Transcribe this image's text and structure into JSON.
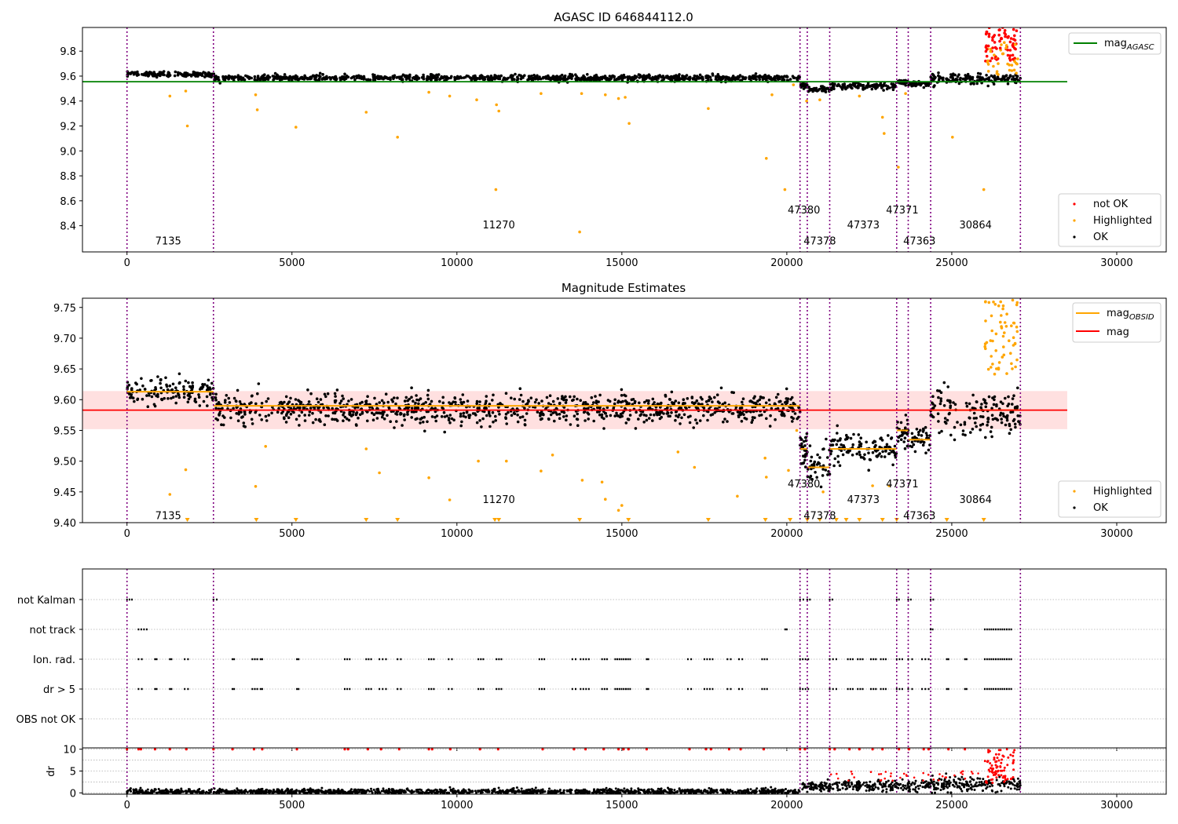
{
  "chart_data": [
    {
      "type": "scatter",
      "title": "AGASC ID 646844112.0",
      "xlabel": "",
      "ylabel": "",
      "xlim": [
        -1350,
        31500
      ],
      "ylim": [
        8.19,
        9.99
      ],
      "xticks": [
        0,
        5000,
        10000,
        15000,
        20000,
        25000,
        30000
      ],
      "yticks": [
        8.4,
        8.6,
        8.8,
        9.0,
        9.2,
        9.4,
        9.6,
        9.8
      ],
      "grid": false,
      "legends": [
        {
          "placement": "top-right",
          "entries": [
            {
              "label": "mag",
              "sub": "AGASC",
              "color": "#008000",
              "kind": "line"
            }
          ]
        },
        {
          "placement": "bottom-right",
          "entries": [
            {
              "label": "not OK",
              "color": "#ff0000",
              "kind": "dot"
            },
            {
              "label": "Highlighted",
              "color": "#ffa500",
              "kind": "dot"
            },
            {
              "label": "OK",
              "color": "#000000",
              "kind": "dot"
            }
          ]
        }
      ],
      "mag_agasc": {
        "value": 9.555,
        "x_range": [
          -1350,
          28500
        ],
        "color": "#008000"
      },
      "obs_boundaries": [
        0,
        2620,
        20400,
        20620,
        21300,
        23330,
        23680,
        24360,
        27080
      ],
      "segments": [
        {
          "x": [
            0,
            2620
          ],
          "level": 9.615,
          "sd": 0.01
        },
        {
          "x": [
            2620,
            20400
          ],
          "level": 9.585,
          "sd": 0.012
        },
        {
          "x": [
            20400,
            20620
          ],
          "level": 9.52,
          "sd": 0.012
        },
        {
          "x": [
            20620,
            21300
          ],
          "level": 9.49,
          "sd": 0.012
        },
        {
          "x": [
            21300,
            23330
          ],
          "level": 9.52,
          "sd": 0.013
        },
        {
          "x": [
            23330,
            23680
          ],
          "level": 9.55,
          "sd": 0.01
        },
        {
          "x": [
            23680,
            24360
          ],
          "level": 9.535,
          "sd": 0.01
        },
        {
          "x": [
            24360,
            27080
          ],
          "level": 9.58,
          "sd": 0.02
        }
      ],
      "obsid_labels": [
        {
          "text": "7135",
          "x": 1250,
          "y": 8.28
        },
        {
          "text": "11270",
          "x": 11270,
          "y": 8.41
        },
        {
          "text": "47380",
          "x": 20520,
          "y": 8.53
        },
        {
          "text": "47378",
          "x": 21000,
          "y": 8.28
        },
        {
          "text": "47373",
          "x": 22320,
          "y": 8.41
        },
        {
          "text": "47371",
          "x": 23500,
          "y": 8.53
        },
        {
          "text": "47363",
          "x": 24020,
          "y": 8.28
        },
        {
          "text": "30864",
          "x": 25720,
          "y": 8.41
        }
      ],
      "highlighted_points": [
        [
          1300,
          9.44
        ],
        [
          1780,
          9.48
        ],
        [
          1830,
          9.2
        ],
        [
          3900,
          9.45
        ],
        [
          3950,
          9.33
        ],
        [
          5120,
          9.19
        ],
        [
          7250,
          9.31
        ],
        [
          8200,
          9.11
        ],
        [
          9150,
          9.47
        ],
        [
          9780,
          9.44
        ],
        [
          10600,
          9.41
        ],
        [
          11200,
          9.37
        ],
        [
          11270,
          9.32
        ],
        [
          11180,
          8.69
        ],
        [
          12550,
          9.46
        ],
        [
          13720,
          8.35
        ],
        [
          13780,
          9.46
        ],
        [
          14500,
          9.45
        ],
        [
          14900,
          9.42
        ],
        [
          15100,
          9.43
        ],
        [
          15220,
          9.22
        ],
        [
          17620,
          9.34
        ],
        [
          19380,
          8.94
        ],
        [
          19550,
          9.45
        ],
        [
          19940,
          8.69
        ],
        [
          20200,
          9.53
        ],
        [
          20600,
          9.4
        ],
        [
          21000,
          9.41
        ],
        [
          22200,
          9.44
        ],
        [
          22900,
          9.27
        ],
        [
          22950,
          9.14
        ],
        [
          23380,
          8.87
        ],
        [
          23600,
          9.46
        ],
        [
          25020,
          9.11
        ],
        [
          25970,
          8.69
        ]
      ],
      "not_ok_points": {
        "x_range": [
          26000,
          27000
        ],
        "y_range": [
          9.72,
          9.99
        ],
        "count": 70
      }
    },
    {
      "type": "scatter",
      "title": "Magnitude Estimates",
      "xlabel": "",
      "ylabel": "",
      "xlim": [
        -1350,
        31500
      ],
      "ylim": [
        9.4,
        9.765
      ],
      "xticks": [
        0,
        5000,
        10000,
        15000,
        20000,
        25000,
        30000
      ],
      "yticks": [
        9.4,
        9.45,
        9.5,
        9.55,
        9.6,
        9.65,
        9.7,
        9.75
      ],
      "grid": false,
      "legends": [
        {
          "placement": "top-right",
          "entries": [
            {
              "label": "mag",
              "sub": "OBSID",
              "color": "#ffa500",
              "kind": "line"
            },
            {
              "label": "mag",
              "sub": "",
              "color": "#ff0000",
              "kind": "line"
            }
          ]
        },
        {
          "placement": "bottom-right",
          "entries": [
            {
              "label": "Highlighted",
              "color": "#ffa500",
              "kind": "dot"
            },
            {
              "label": "OK",
              "color": "#000000",
              "kind": "dot"
            }
          ]
        }
      ],
      "mag": {
        "value": 9.583,
        "band": [
          9.552,
          9.614
        ],
        "x_range": [
          -1350,
          28500
        ],
        "color": "#ff0000"
      },
      "mag_obsid": [
        {
          "x": [
            0,
            2620
          ],
          "value": 9.613
        },
        {
          "x": [
            2620,
            20400
          ],
          "value": 9.59
        },
        {
          "x": [
            20400,
            20620
          ],
          "value": 9.52
        },
        {
          "x": [
            20620,
            21300
          ],
          "value": 9.49
        },
        {
          "x": [
            21300,
            23330
          ],
          "value": 9.52
        },
        {
          "x": [
            23330,
            23680
          ],
          "value": 9.55
        },
        {
          "x": [
            23680,
            24360
          ],
          "value": 9.535
        },
        {
          "x": [
            24360,
            27080
          ],
          "value": 9.583
        }
      ],
      "obsid_labels": [
        {
          "text": "7135",
          "x": 1250,
          "y": 9.412
        },
        {
          "text": "11270",
          "x": 11270,
          "y": 9.438
        },
        {
          "text": "47380",
          "x": 20520,
          "y": 9.464
        },
        {
          "text": "47378",
          "x": 21000,
          "y": 9.412
        },
        {
          "text": "47373",
          "x": 22320,
          "y": 9.438
        },
        {
          "text": "47371",
          "x": 23500,
          "y": 9.464
        },
        {
          "text": "47363",
          "x": 24020,
          "y": 9.412
        },
        {
          "text": "30864",
          "x": 25720,
          "y": 9.438
        }
      ],
      "highlighted_points": [
        [
          1300,
          9.446
        ],
        [
          1780,
          9.486
        ],
        [
          3900,
          9.459
        ],
        [
          4200,
          9.524
        ],
        [
          7250,
          9.52
        ],
        [
          7650,
          9.481
        ],
        [
          9150,
          9.473
        ],
        [
          9780,
          9.437
        ],
        [
          10650,
          9.5
        ],
        [
          11500,
          9.5
        ],
        [
          12550,
          9.484
        ],
        [
          12900,
          9.51
        ],
        [
          13800,
          9.469
        ],
        [
          14400,
          9.466
        ],
        [
          14500,
          9.438
        ],
        [
          15000,
          9.428
        ],
        [
          14900,
          9.42
        ],
        [
          16700,
          9.515
        ],
        [
          17200,
          9.49
        ],
        [
          19340,
          9.505
        ],
        [
          19380,
          9.474
        ],
        [
          18500,
          9.443
        ],
        [
          20050,
          9.485
        ],
        [
          20300,
          9.55
        ],
        [
          21100,
          9.45
        ],
        [
          22600,
          9.46
        ],
        [
          23100,
          9.46
        ]
      ],
      "below_range_markers": [
        1830,
        3920,
        5120,
        7250,
        8200,
        11150,
        11270,
        13720,
        15200,
        17620,
        19350,
        20100,
        20620,
        21000,
        21500,
        21800,
        22200,
        22900,
        23330,
        24850,
        25970
      ]
    },
    {
      "type": "scatter",
      "title": "",
      "xlabel": "",
      "ylabel": "",
      "xlim": [
        -1350,
        31500
      ],
      "categories": [
        "not Kalman",
        "not track",
        "Ion. rad.",
        "dr > 5",
        "OBS not OK"
      ],
      "grid": true,
      "events": {
        "not Kalman": [
          [
            0,
            150
          ],
          [
            2620,
            2720
          ],
          [
            20400,
            20500
          ],
          [
            20620,
            20700
          ],
          [
            21300,
            21380
          ],
          [
            23330,
            23400
          ],
          [
            23680,
            23760
          ],
          [
            24360,
            24440
          ]
        ],
        "not track": [
          [
            350,
            600
          ],
          [
            19950,
            20000
          ],
          [
            24360,
            24420
          ],
          [
            26000,
            26800
          ]
        ],
        "Ion. rad.": [
          [
            350,
            450
          ],
          [
            850,
            900
          ],
          [
            1300,
            1350
          ],
          [
            1750,
            1850
          ],
          [
            3200,
            3250
          ],
          [
            3800,
            3950
          ],
          [
            4050,
            4100
          ],
          [
            5150,
            5200
          ],
          [
            6600,
            6750
          ],
          [
            7250,
            7400
          ],
          [
            7650,
            7850
          ],
          [
            8200,
            8300
          ],
          [
            9150,
            9300
          ],
          [
            9750,
            9850
          ],
          [
            10650,
            10800
          ],
          [
            11200,
            11350
          ],
          [
            12500,
            12650
          ],
          [
            13500,
            13600
          ],
          [
            13750,
            14000
          ],
          [
            14400,
            14550
          ],
          [
            14800,
            15250
          ],
          [
            15750,
            15800
          ],
          [
            17000,
            17100
          ],
          [
            17500,
            17750
          ],
          [
            18200,
            18300
          ],
          [
            18550,
            18650
          ],
          [
            19250,
            19400
          ],
          [
            20400,
            20650
          ],
          [
            21300,
            21500
          ],
          [
            21850,
            22000
          ],
          [
            22150,
            22300
          ],
          [
            22550,
            22700
          ],
          [
            22850,
            23000
          ],
          [
            23330,
            23500
          ],
          [
            23680,
            23800
          ],
          [
            24100,
            24300
          ],
          [
            24850,
            24900
          ],
          [
            25400,
            25450
          ],
          [
            26000,
            26800
          ]
        ],
        "dr > 5": [
          [
            350,
            450
          ],
          [
            850,
            900
          ],
          [
            1300,
            1350
          ],
          [
            1750,
            1850
          ],
          [
            3200,
            3250
          ],
          [
            3800,
            3950
          ],
          [
            4050,
            4100
          ],
          [
            5150,
            5200
          ],
          [
            6600,
            6750
          ],
          [
            7250,
            7400
          ],
          [
            7650,
            7850
          ],
          [
            8200,
            8300
          ],
          [
            9150,
            9300
          ],
          [
            9750,
            9850
          ],
          [
            10650,
            10800
          ],
          [
            11200,
            11350
          ],
          [
            12500,
            12650
          ],
          [
            13500,
            13600
          ],
          [
            13750,
            14000
          ],
          [
            14400,
            14550
          ],
          [
            14800,
            15250
          ],
          [
            15750,
            15800
          ],
          [
            17000,
            17100
          ],
          [
            17500,
            17750
          ],
          [
            18200,
            18300
          ],
          [
            18550,
            18650
          ],
          [
            19250,
            19400
          ],
          [
            20400,
            20650
          ],
          [
            21300,
            21500
          ],
          [
            21850,
            22000
          ],
          [
            22150,
            22300
          ],
          [
            22550,
            22700
          ],
          [
            22850,
            23000
          ],
          [
            23330,
            23500
          ],
          [
            23680,
            23800
          ],
          [
            24100,
            24300
          ],
          [
            24850,
            24900
          ],
          [
            25400,
            25450
          ],
          [
            26000,
            26800
          ]
        ],
        "OBS not OK": []
      }
    },
    {
      "type": "scatter",
      "title": "",
      "xlabel": "",
      "ylabel": "dr",
      "xlim": [
        -1350,
        31500
      ],
      "ylim": [
        -0.3,
        10.3
      ],
      "yticks": [
        0,
        5,
        10
      ],
      "grid": true,
      "dr_segments": [
        {
          "x": [
            0,
            20400
          ],
          "level": 0.3,
          "spread": 0.3
        },
        {
          "x": [
            20400,
            24360
          ],
          "level": 1.6,
          "spread": 0.6
        },
        {
          "x": [
            24360,
            27080
          ],
          "level": 2.0,
          "spread": 0.9
        }
      ],
      "dr_outliers_at_10": [
        0,
        350,
        420,
        850,
        1300,
        1800,
        2620,
        3200,
        3850,
        4100,
        5150,
        6600,
        6700,
        7300,
        7700,
        8250,
        9150,
        9250,
        9800,
        10700,
        11250,
        12600,
        13550,
        13900,
        14450,
        14900,
        15050,
        15200,
        15750,
        17050,
        17550,
        17700,
        18250,
        18600,
        19300,
        20400,
        20550,
        21300,
        21450,
        21900,
        22200,
        22600,
        22900,
        23400,
        23700,
        24150,
        24300,
        24900,
        25400
      ]
    }
  ]
}
